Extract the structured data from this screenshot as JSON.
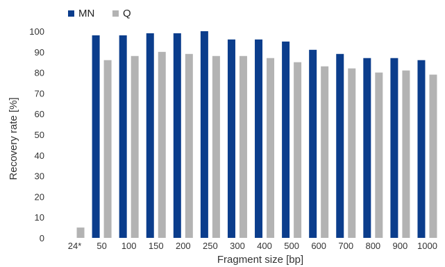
{
  "chart_data": {
    "type": "bar",
    "title": "",
    "xlabel": "Fragment size [bp]",
    "ylabel": "Recovery rate [%]",
    "ylim": [
      0,
      100
    ],
    "yticks": [
      0,
      10,
      20,
      30,
      40,
      50,
      60,
      70,
      80,
      90,
      100
    ],
    "grid": false,
    "legend_position": "top-left",
    "categories": [
      "24*",
      "50",
      "100",
      "150",
      "200",
      "250",
      "300",
      "400",
      "500",
      "600",
      "700",
      "800",
      "900",
      "1000"
    ],
    "series": [
      {
        "name": "MN",
        "color": "#0b3d8c",
        "values": [
          0,
          98,
          98,
          99,
          99,
          100,
          96,
          96,
          95,
          91,
          89,
          87,
          87,
          86
        ]
      },
      {
        "name": "Q",
        "color": "#b3b3b3",
        "values": [
          5,
          86,
          88,
          90,
          89,
          88,
          88,
          87,
          85,
          83,
          82,
          80,
          81,
          79
        ]
      }
    ]
  }
}
